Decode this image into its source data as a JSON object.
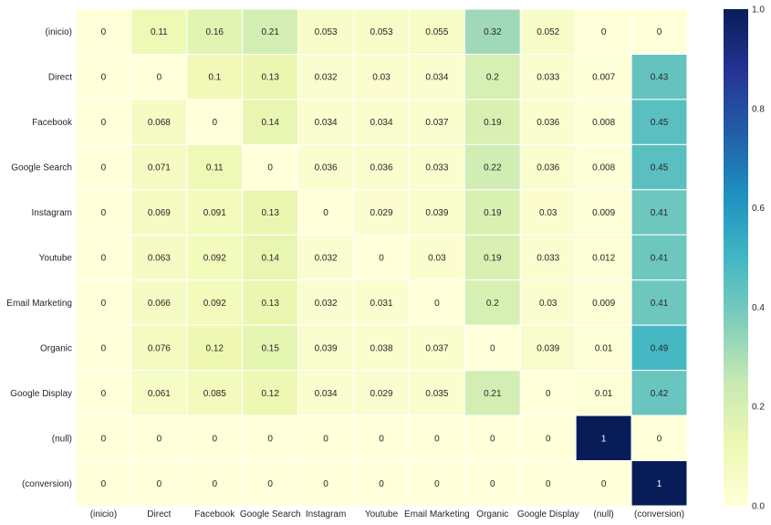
{
  "chart_data": {
    "type": "heatmap",
    "title": "",
    "xlabel": "",
    "ylabel": "",
    "row_labels": [
      "(inicio)",
      "Direct",
      "Facebook",
      "Google Search",
      "Instagram",
      "Youtube",
      "Email Marketing",
      "Organic",
      "Google Display",
      "(null)",
      "(conversion)"
    ],
    "col_labels": [
      "(inicio)",
      "Direct",
      "Facebook",
      "Google Search",
      "Instagram",
      "Youtube",
      "Email Marketing",
      "Organic",
      "Google Display",
      "(null)",
      "(conversion)"
    ],
    "values": [
      [
        0,
        0.11,
        0.16,
        0.21,
        0.053,
        0.053,
        0.055,
        0.32,
        0.052,
        0,
        0
      ],
      [
        0,
        0,
        0.1,
        0.13,
        0.032,
        0.03,
        0.034,
        0.2,
        0.033,
        0.007,
        0.43
      ],
      [
        0,
        0.068,
        0,
        0.14,
        0.034,
        0.034,
        0.037,
        0.19,
        0.036,
        0.008,
        0.45
      ],
      [
        0,
        0.071,
        0.11,
        0,
        0.036,
        0.036,
        0.033,
        0.22,
        0.036,
        0.008,
        0.45
      ],
      [
        0,
        0.069,
        0.091,
        0.13,
        0,
        0.029,
        0.039,
        0.19,
        0.03,
        0.009,
        0.41
      ],
      [
        0,
        0.063,
        0.092,
        0.14,
        0.032,
        0,
        0.03,
        0.19,
        0.033,
        0.012,
        0.41
      ],
      [
        0,
        0.066,
        0.092,
        0.13,
        0.032,
        0.031,
        0,
        0.2,
        0.03,
        0.009,
        0.41
      ],
      [
        0,
        0.076,
        0.12,
        0.15,
        0.039,
        0.038,
        0.037,
        0,
        0.039,
        0.01,
        0.49
      ],
      [
        0,
        0.061,
        0.085,
        0.12,
        0.034,
        0.029,
        0.035,
        0.21,
        0,
        0.01,
        0.42
      ],
      [
        0,
        0,
        0,
        0,
        0,
        0,
        0,
        0,
        0,
        1,
        0
      ],
      [
        0,
        0,
        0,
        0,
        0,
        0,
        0,
        0,
        0,
        0,
        1
      ]
    ],
    "cell_labels": [
      [
        "0",
        "0.11",
        "0.16",
        "0.21",
        "0.053",
        "0.053",
        "0.055",
        "0.32",
        "0.052",
        "0",
        "0"
      ],
      [
        "0",
        "0",
        "0.1",
        "0.13",
        "0.032",
        "0.03",
        "0.034",
        "0.2",
        "0.033",
        "0.007",
        "0.43"
      ],
      [
        "0",
        "0.068",
        "0",
        "0.14",
        "0.034",
        "0.034",
        "0.037",
        "0.19",
        "0.036",
        "0.008",
        "0.45"
      ],
      [
        "0",
        "0.071",
        "0.11",
        "0",
        "0.036",
        "0.036",
        "0.033",
        "0.22",
        "0.036",
        "0.008",
        "0.45"
      ],
      [
        "0",
        "0.069",
        "0.091",
        "0.13",
        "0",
        "0.029",
        "0.039",
        "0.19",
        "0.03",
        "0.009",
        "0.41"
      ],
      [
        "0",
        "0.063",
        "0.092",
        "0.14",
        "0.032",
        "0",
        "0.03",
        "0.19",
        "0.033",
        "0.012",
        "0.41"
      ],
      [
        "0",
        "0.066",
        "0.092",
        "0.13",
        "0.032",
        "0.031",
        "0",
        "0.2",
        "0.03",
        "0.009",
        "0.41"
      ],
      [
        "0",
        "0.076",
        "0.12",
        "0.15",
        "0.039",
        "0.038",
        "0.037",
        "0",
        "0.039",
        "0.01",
        "0.49"
      ],
      [
        "0",
        "0.061",
        "0.085",
        "0.12",
        "0.034",
        "0.029",
        "0.035",
        "0.21",
        "0",
        "0.01",
        "0.42"
      ],
      [
        "0",
        "0",
        "0",
        "0",
        "0",
        "0",
        "0",
        "0",
        "0",
        "1",
        "0"
      ],
      [
        "0",
        "0",
        "0",
        "0",
        "0",
        "0",
        "0",
        "0",
        "0",
        "0",
        "1"
      ]
    ],
    "colormap": "YlGnBu",
    "colormap_stops": [
      "#ffffd9",
      "#edf8b1",
      "#c7e9b4",
      "#7fcdbb",
      "#41b6c4",
      "#1d91c0",
      "#225ea8",
      "#253494",
      "#081d58"
    ],
    "vmin": 0,
    "vmax": 1,
    "colorbar": {
      "ticks": [
        0.0,
        0.2,
        0.4,
        0.6,
        0.8,
        1.0
      ],
      "tick_labels": [
        "0.0",
        "0.2",
        "0.4",
        "0.6",
        "0.8",
        "1.0"
      ]
    }
  }
}
